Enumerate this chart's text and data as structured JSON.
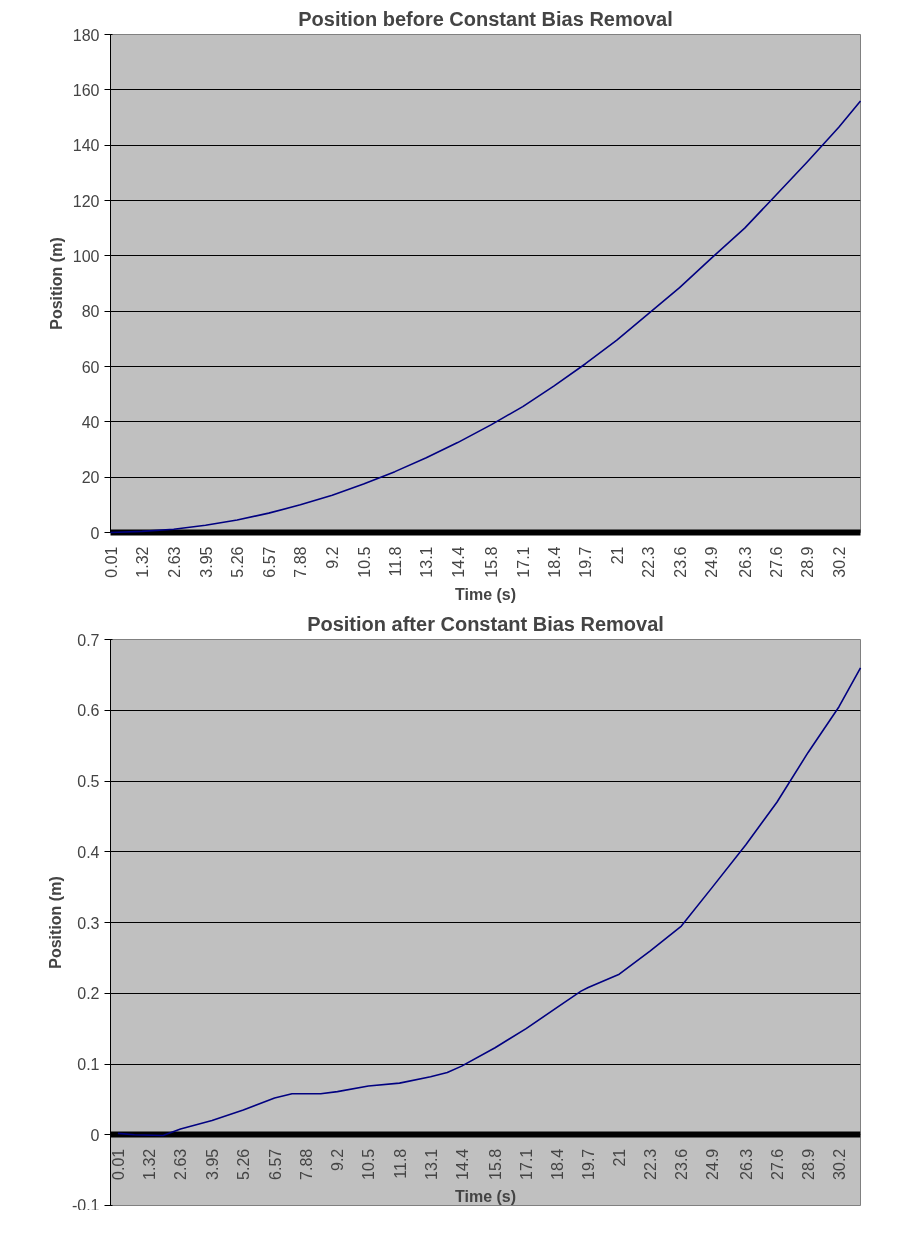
{
  "chart_data": [
    {
      "type": "line",
      "title": "Position before Constant Bias Removal",
      "xlabel": "Time (s)",
      "ylabel": "Position (m)",
      "x": [
        0.01,
        1.32,
        2.63,
        3.95,
        5.26,
        6.57,
        7.88,
        9.2,
        10.5,
        11.8,
        13.1,
        14.4,
        15.8,
        17.1,
        18.4,
        19.7,
        21,
        22.3,
        23.6,
        24.9,
        26.3,
        27.6,
        28.9,
        30.2,
        31.1
      ],
      "series": [
        {
          "color": "#000080",
          "values": [
            0,
            0.4,
            1.2,
            2.6,
            4.5,
            7,
            10,
            13.5,
            17.5,
            22,
            27,
            32.5,
            39,
            45.5,
            53,
            61,
            69.5,
            79,
            88.5,
            99,
            110,
            122,
            134,
            146.5,
            156
          ]
        }
      ],
      "xlim": [
        0.01,
        31.1
      ],
      "ylim": [
        0,
        180
      ],
      "xticks": [
        0.01,
        1.32,
        2.63,
        3.95,
        5.26,
        6.57,
        7.88,
        9.2,
        10.5,
        11.8,
        13.1,
        14.4,
        15.8,
        17.1,
        18.4,
        19.7,
        21,
        22.3,
        23.6,
        24.9,
        26.3,
        27.6,
        28.9,
        30.2
      ],
      "yticks": [
        0,
        20,
        40,
        60,
        80,
        100,
        120,
        140,
        160,
        180
      ],
      "grid": "y",
      "marker": "none",
      "line_style": "solid"
    },
    {
      "type": "line",
      "title": "Position after Constant Bias Removal",
      "xlabel": "Time (s)",
      "ylabel": "Position (m)",
      "x": [
        0.01,
        0.7,
        1.9,
        2.63,
        3.95,
        5.26,
        6.57,
        7.3,
        8.5,
        9.2,
        10.5,
        11.8,
        13.1,
        13.8,
        14.4,
        15.8,
        17.1,
        18.4,
        19.4,
        19.7,
        21,
        22.3,
        23.6,
        24.9,
        26.3,
        27.6,
        28.9,
        30.2,
        31.1
      ],
      "series": [
        {
          "color": "#000080",
          "values": [
            0.002,
            0,
            -0.001,
            0.008,
            0.02,
            0.035,
            0.052,
            0.058,
            0.058,
            0.061,
            0.069,
            0.073,
            0.082,
            0.088,
            0.097,
            0.123,
            0.15,
            0.18,
            0.203,
            0.208,
            0.227,
            0.26,
            0.295,
            0.35,
            0.41,
            0.47,
            0.54,
            0.605,
            0.66
          ]
        }
      ],
      "xlim": [
        -0.3,
        31.1
      ],
      "ylim": [
        -0.1,
        0.7
      ],
      "xticks": [
        0.01,
        1.32,
        2.63,
        3.95,
        5.26,
        6.57,
        7.88,
        9.2,
        10.5,
        11.8,
        13.1,
        14.4,
        15.8,
        17.1,
        18.4,
        19.7,
        21,
        22.3,
        23.6,
        24.9,
        26.3,
        27.6,
        28.9,
        30.2
      ],
      "yticks": [
        -0.1,
        0,
        0.1,
        0.2,
        0.3,
        0.4,
        0.5,
        0.6,
        0.7
      ],
      "grid": "y",
      "marker": "none",
      "line_style": "solid"
    }
  ]
}
